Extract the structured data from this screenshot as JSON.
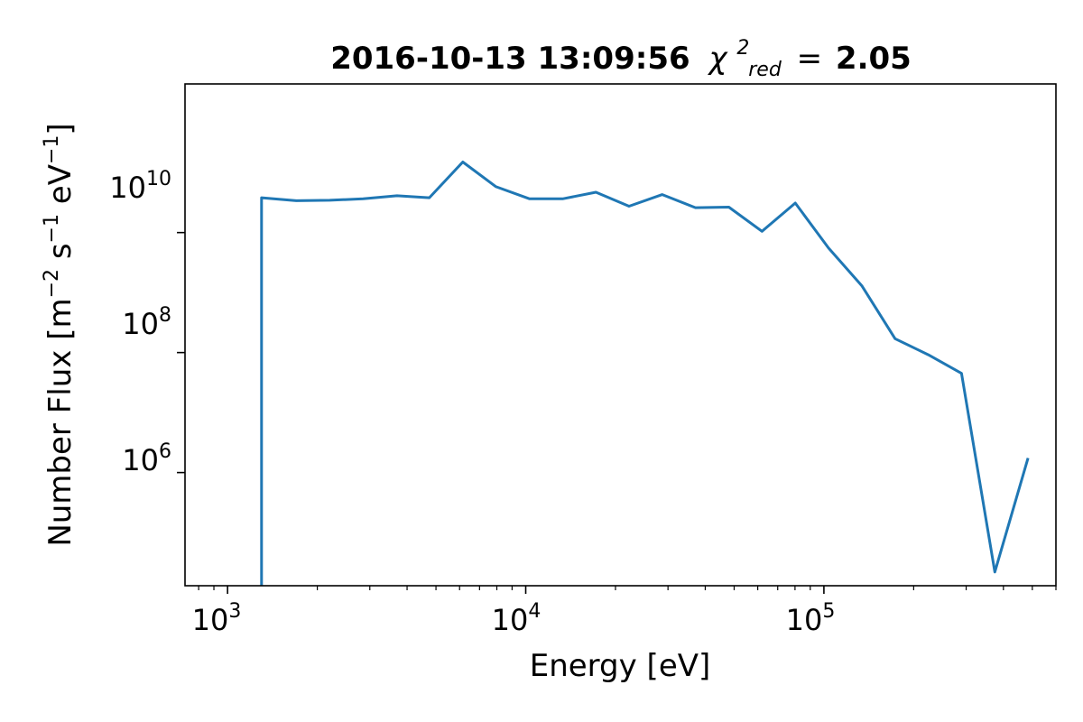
{
  "chart_data": {
    "type": "line",
    "title": {
      "timestamp": "2016-10-13 13:09:56",
      "chi_symbol": "χ",
      "chi_superscript": "2",
      "chi_subscript": "red",
      "equals": "=",
      "value": "2.05"
    },
    "xlabel": "Energy [eV]",
    "ylabel": {
      "prefix": "Number Flux [m",
      "exp1": "−2",
      "mid1": " s",
      "exp2": "−1",
      "mid2": " eV",
      "exp3": "−1",
      "suffix": "]"
    },
    "xscale": "log",
    "yscale": "log",
    "xlim": [
      720,
      600000
    ],
    "ylim": [
      13000,
      3000000000000
    ],
    "x_ticks": [
      {
        "base": "10",
        "exp": "3",
        "value": 1000
      },
      {
        "base": "10",
        "exp": "4",
        "value": 10000
      },
      {
        "base": "10",
        "exp": "5",
        "value": 100000
      }
    ],
    "y_ticks": [
      {
        "base": "10",
        "exp": "6",
        "value": 1000000
      },
      {
        "base": "10",
        "exp": "8",
        "value": 100000000
      },
      {
        "base": "10",
        "exp": "10",
        "value": 10000000000
      }
    ],
    "series": [
      {
        "color": "#1f77b4",
        "x": [
          1300,
          1300,
          1700,
          2200,
          2850,
          3700,
          4750,
          6150,
          7950,
          10300,
          13300,
          17200,
          22200,
          28700,
          37100,
          48000,
          62000,
          80200,
          103700,
          134000,
          173300,
          224000,
          289500,
          374200,
          483700
        ],
        "y": [
          13000,
          38000000000,
          34000000000,
          34500000000,
          36500000000,
          41000000000,
          38000000000,
          150000000000,
          58000000000,
          36500000000,
          36500000000,
          47000000000,
          27500000000,
          43000000000,
          26000000000,
          26500000000,
          10500000000,
          31000000000,
          5500000000,
          1300000000,
          170000000,
          92000000,
          45000000,
          22000,
          1750000
        ]
      }
    ],
    "grid": false,
    "legend": "none"
  }
}
